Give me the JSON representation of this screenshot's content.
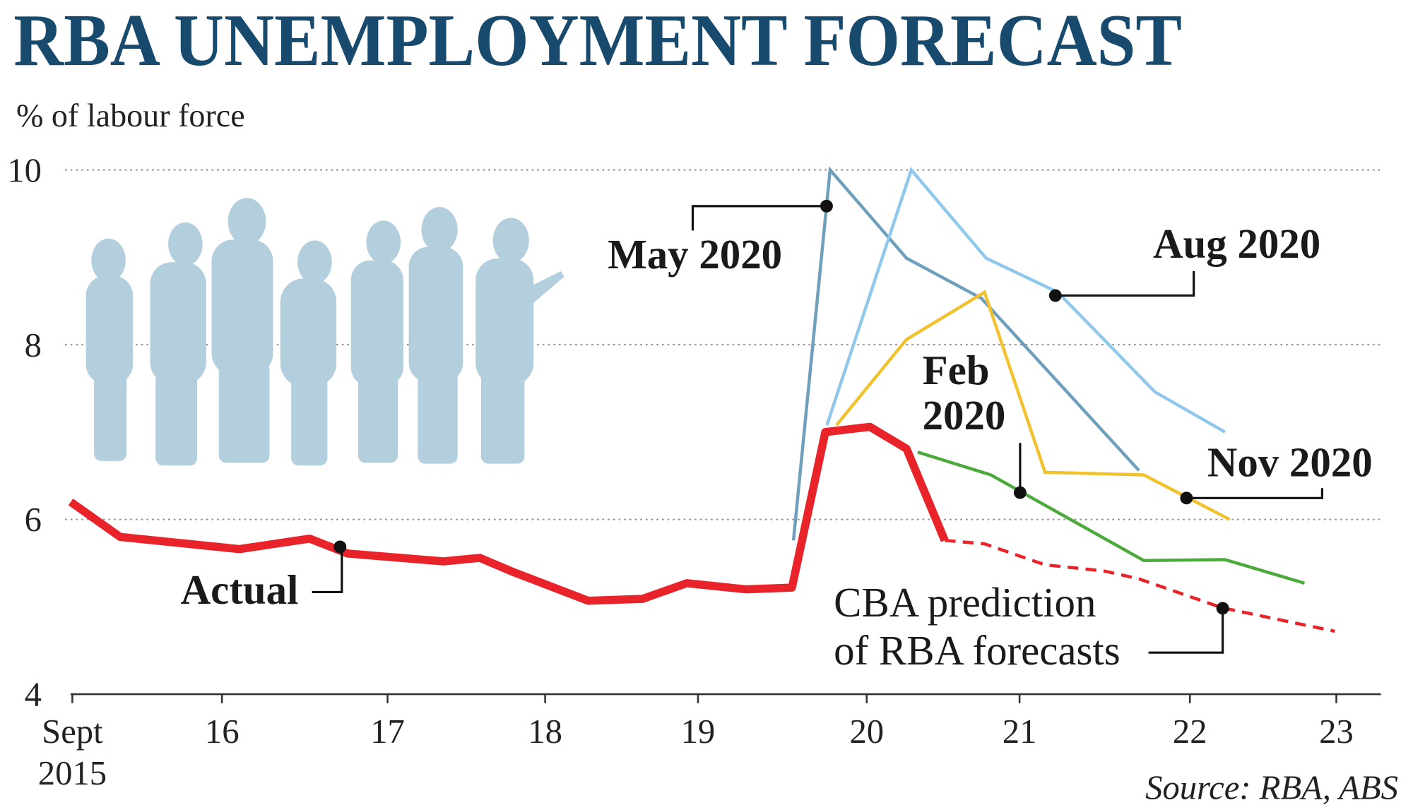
{
  "chart_data": {
    "type": "line",
    "title": "RBA UNEMPLOYMENT FORECAST",
    "y_label": "% of labour force",
    "source": "Source: RBA, ABS",
    "xlim": [
      2015.67,
      2023.89
    ],
    "ylim": [
      4,
      10
    ],
    "yticks": [
      4,
      6,
      8,
      10
    ],
    "xticks": [
      {
        "value": 2015.67,
        "label": "Sept\n2015"
      },
      {
        "value": 2016.61,
        "label": "16"
      },
      {
        "value": 2017.65,
        "label": "17"
      },
      {
        "value": 2018.64,
        "label": "18"
      },
      {
        "value": 2019.6,
        "label": "19"
      },
      {
        "value": 2020.66,
        "label": "20"
      },
      {
        "value": 2021.62,
        "label": "21"
      },
      {
        "value": 2022.69,
        "label": "22"
      },
      {
        "value": 2023.61,
        "label": "23"
      }
    ],
    "grid": true,
    "series": [
      {
        "name": "May 2020",
        "color": "#6e9fbd",
        "dashed": false,
        "x": [
          2020.2,
          2020.43,
          2020.91,
          2021.38,
          2022.37
        ],
        "values": [
          5.76,
          10.0,
          8.99,
          8.53,
          6.56
        ]
      },
      {
        "name": "Aug 2020",
        "color": "#8fc8ec",
        "dashed": false,
        "x": [
          2020.41,
          2020.94,
          2021.41,
          2021.86,
          2022.47,
          2022.91
        ],
        "values": [
          7.08,
          10.0,
          8.99,
          8.6,
          7.46,
          7.0
        ]
      },
      {
        "name": "Nov 2020",
        "color": "#f2c12e",
        "dashed": false,
        "x": [
          2020.47,
          2020.91,
          2021.4,
          2021.78,
          2022.4,
          2022.94
        ],
        "values": [
          7.08,
          8.06,
          8.6,
          6.54,
          6.51,
          6.0
        ]
      },
      {
        "name": "Feb\n2020",
        "color": "#4caa3c",
        "dashed": false,
        "x": [
          2020.98,
          2021.44,
          2022.4,
          2022.91,
          2023.41
        ],
        "values": [
          6.77,
          6.51,
          5.53,
          5.54,
          5.27
        ]
      },
      {
        "name": "CBA prediction\nof RBA forecasts",
        "color": "#e8232a",
        "dashed": true,
        "x": [
          2021.15,
          2021.4,
          2021.78,
          2022.15,
          2022.37,
          2022.89,
          2023.6
        ],
        "values": [
          5.76,
          5.72,
          5.48,
          5.41,
          5.32,
          4.99,
          4.72
        ]
      },
      {
        "name": "Actual",
        "color": "#e8232a",
        "dashed": false,
        "x": [
          2015.66,
          2015.97,
          2016.72,
          2017.16,
          2017.4,
          2018.0,
          2018.23,
          2018.45,
          2018.91,
          2019.25,
          2019.53,
          2019.9,
          2020.19,
          2020.4,
          2020.68,
          2020.91,
          2021.15
        ],
        "values": [
          6.2,
          5.8,
          5.66,
          5.78,
          5.61,
          5.52,
          5.56,
          5.39,
          5.07,
          5.09,
          5.27,
          5.2,
          5.22,
          7.0,
          7.06,
          6.81,
          5.76
        ]
      }
    ]
  }
}
